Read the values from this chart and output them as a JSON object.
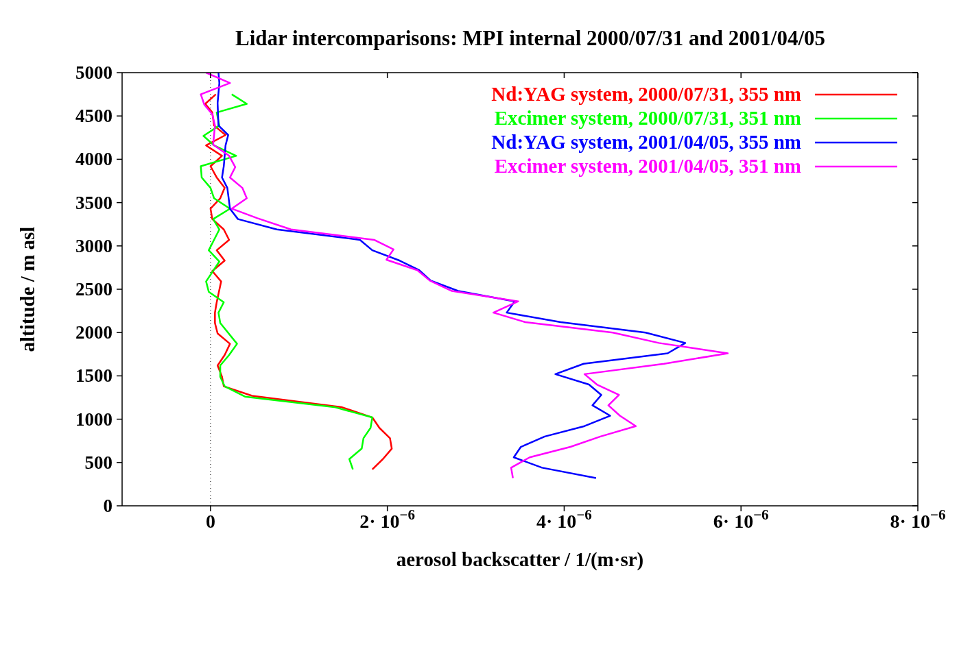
{
  "chart_data": {
    "type": "line",
    "title": "Lidar intercomparisons: MPI internal 2000/07/31 and 2001/04/05",
    "xlabel": "aerosol backscatter / 1/(m·sr)",
    "ylabel": "altitude  / m asl",
    "xlim": [
      -1e-06,
      8e-06
    ],
    "xticks": [
      0,
      {
        "value": 2e-06,
        "label": "2· 10$^{−6}$"
      },
      {
        "value": 4e-06,
        "label": "4· 10$^{−6}$"
      },
      {
        "value": 6e-06,
        "label": "6· 10$^{−6}$"
      },
      {
        "value": 8e-06,
        "label": "8· 10$^{−6}$"
      }
    ],
    "ylim": [
      0,
      5000
    ],
    "yticks": [
      0,
      500,
      1000,
      1500,
      2000,
      2500,
      3000,
      3500,
      4000,
      4500,
      5000
    ],
    "legend": "top right",
    "marker": "none",
    "line_style": "solid",
    "ref_lines": [
      {
        "axis": "x",
        "value": 0,
        "color": "#000000",
        "line_style": "dotted"
      }
    ],
    "series": [
      {
        "name": "Nd:YAG system, 2000/07/31, 355 nm",
        "color": "#ff0000",
        "x": [
          1.83e-06,
          1.95e-06,
          2.05e-06,
          2.03e-06,
          1.91e-06,
          1.83e-06,
          1.48e-06,
          4.7e-07,
          1.5e-07,
          1.3e-07,
          8e-08,
          1.6e-07,
          2.2e-07,
          8e-08,
          5e-08,
          5e-08,
          7e-08,
          1.2e-07,
          2e-08,
          1.6e-07,
          7e-08,
          2.1e-07,
          1.5e-07,
          2e-08,
          0.0,
          1.1e-07,
          1.6e-07,
          7e-08,
          0.0,
          1.3e-07,
          -5e-08,
          1.7e-07,
          4e-08,
          2e-08,
          -6e-08,
          6e-08
        ],
        "values": [
          420,
          540,
          660,
          780,
          900,
          1020,
          1140,
          1270,
          1380,
          1490,
          1620,
          1740,
          1870,
          1990,
          2110,
          2230,
          2350,
          2590,
          2710,
          2830,
          2950,
          3070,
          3190,
          3310,
          3430,
          3550,
          3670,
          3790,
          3920,
          4040,
          4160,
          4280,
          4390,
          4540,
          4640,
          4750
        ]
      },
      {
        "name": "Excimer system, 2000/07/31, 351 nm",
        "color": "#00ff00",
        "x": [
          1.61e-06,
          1.57e-06,
          1.71e-06,
          1.73e-06,
          1.81e-06,
          1.83e-06,
          1.4e-06,
          3.9e-07,
          1.6e-07,
          1.1e-07,
          1.1e-07,
          2.1e-07,
          3e-07,
          1.1e-07,
          9e-08,
          1.5e-07,
          -2e-08,
          -5e-08,
          1e-07,
          -2e-08,
          1e-07,
          3e-08,
          2.2e-07,
          4e-08,
          0.0,
          -1e-07,
          -1.1e-07,
          2.9e-07,
          4e-08,
          -8e-08,
          1e-07,
          7e-08,
          4.1e-07,
          2.4e-07
        ],
        "values": [
          420,
          540,
          660,
          780,
          900,
          1020,
          1140,
          1260,
          1380,
          1490,
          1620,
          1740,
          1870,
          2110,
          2230,
          2350,
          2470,
          2590,
          2820,
          2950,
          3190,
          3310,
          3430,
          3550,
          3670,
          3790,
          3920,
          4040,
          4160,
          4270,
          4390,
          4540,
          4640,
          4750
        ]
      },
      {
        "name": "Nd:YAG system, 2001/04/05, 355 nm",
        "color": "#0000ff",
        "x": [
          9e-08,
          1e-07,
          8e-08,
          9e-08,
          2e-07,
          1.7e-07,
          1.5e-07,
          1.3e-07,
          1.9e-07,
          2.2e-07,
          3.1e-07,
          7.5e-07,
          1.69e-06,
          1.83e-06,
          2.14e-06,
          2.36e-06,
          2.49e-06,
          2.8e-06,
          3.44e-06,
          3.35e-06,
          3.96e-06,
          4.92e-06,
          5.37e-06,
          5.17e-06,
          4.22e-06,
          3.9e-06,
          4.28e-06,
          4.42e-06,
          4.32e-06,
          4.52e-06,
          4.23e-06,
          3.78e-06,
          3.51e-06,
          3.43e-06,
          3.75e-06,
          4.36e-06
        ],
        "values": [
          5000,
          4880,
          4650,
          4390,
          4280,
          4160,
          3920,
          3790,
          3670,
          3430,
          3310,
          3190,
          3070,
          2950,
          2830,
          2720,
          2600,
          2480,
          2360,
          2230,
          2120,
          2000,
          1880,
          1760,
          1640,
          1520,
          1400,
          1280,
          1160,
          1040,
          920,
          800,
          680,
          560,
          440,
          320
        ]
      },
      {
        "name": "Excimer system, 2001/04/05, 351 nm",
        "color": "#ff00ff",
        "x": [
          -5e-08,
          2.2e-07,
          -1.1e-07,
          -7e-08,
          2e-08,
          5e-08,
          4e-08,
          3e-08,
          2.1e-07,
          2.8e-07,
          2.2e-07,
          3.6e-07,
          4.1e-07,
          2.4e-07,
          5.3e-07,
          9.1e-07,
          1.85e-06,
          2.07e-06,
          1.99e-06,
          2.34e-06,
          2.48e-06,
          2.73e-06,
          3.48e-06,
          3.2e-06,
          3.56e-06,
          4.55e-06,
          5.07e-06,
          5.85e-06,
          5.13e-06,
          4.23e-06,
          4.37e-06,
          4.62e-06,
          4.5e-06,
          4.63e-06,
          4.81e-06,
          4.41e-06,
          4.07e-06,
          3.61e-06,
          3.4e-06,
          3.42e-06
        ],
        "values": [
          5000,
          4880,
          4750,
          4630,
          4520,
          4390,
          4280,
          4170,
          4040,
          3910,
          3790,
          3670,
          3550,
          3430,
          3320,
          3190,
          3070,
          2960,
          2840,
          2720,
          2600,
          2480,
          2360,
          2230,
          2120,
          2000,
          1880,
          1760,
          1640,
          1520,
          1400,
          1280,
          1160,
          1040,
          920,
          800,
          680,
          560,
          440,
          320
        ]
      }
    ]
  }
}
